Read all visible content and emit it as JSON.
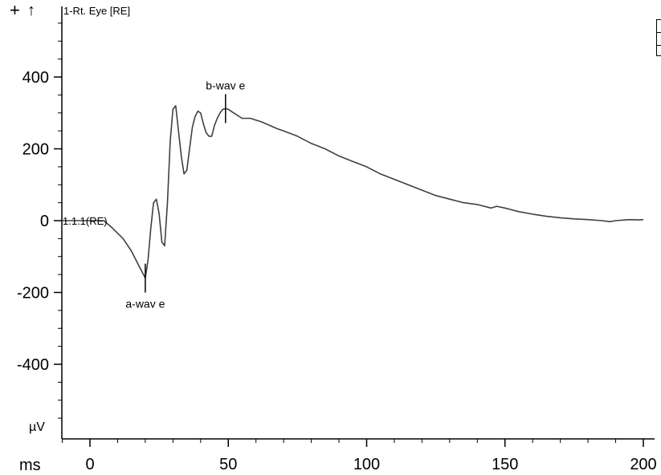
{
  "toolbar": {
    "zoom_in_icon": "plus-icon",
    "zoom_in_glyph": "+",
    "scroll_up_icon": "up-arrow-icon",
    "scroll_up_glyph": "↑"
  },
  "chart_data": {
    "type": "line",
    "title": "",
    "channel_label": "1-Rt. Eye [RE]",
    "trace_label": "1.1.1(RE)",
    "xlabel": "ms",
    "ylabel": "µV",
    "xlim": [
      -10,
      200
    ],
    "ylim": [
      -600,
      600
    ],
    "x_ticks": [
      0,
      50,
      100,
      150,
      200
    ],
    "y_ticks": [
      -400,
      -200,
      0,
      200,
      400
    ],
    "grid": false,
    "line_color": "#404040",
    "series": [
      {
        "x": [
          -10,
          5,
          8,
          12,
          15,
          18,
          20,
          21,
          22,
          23,
          24,
          25,
          26,
          27,
          28,
          29,
          30,
          31,
          32,
          33,
          34,
          35,
          36,
          37,
          38,
          39,
          40,
          41,
          42,
          43,
          44,
          45,
          46,
          47,
          48,
          49,
          50,
          52,
          55,
          58,
          62,
          65,
          68,
          70,
          75,
          80,
          85,
          90,
          95,
          100,
          105,
          110,
          115,
          120,
          125,
          130,
          135,
          140,
          145,
          147,
          150,
          155,
          160,
          165,
          170,
          175,
          180,
          185,
          188,
          190,
          195,
          198,
          200
        ],
        "y": [
          0,
          0,
          -20,
          -50,
          -85,
          -130,
          -160,
          -110,
          -20,
          50,
          60,
          20,
          -60,
          -70,
          50,
          220,
          310,
          320,
          250,
          180,
          130,
          140,
          200,
          260,
          290,
          305,
          300,
          270,
          245,
          235,
          235,
          265,
          285,
          300,
          310,
          312,
          310,
          300,
          285,
          285,
          275,
          265,
          255,
          250,
          235,
          215,
          200,
          180,
          165,
          150,
          130,
          115,
          100,
          85,
          70,
          60,
          50,
          45,
          35,
          40,
          35,
          25,
          18,
          12,
          8,
          5,
          3,
          0,
          -3,
          0,
          3,
          2,
          3
        ]
      }
    ],
    "annotations": [
      {
        "text": "a-wav e",
        "x": 20,
        "y": -160
      },
      {
        "text": "b-wav e",
        "x": 49,
        "y": 312
      }
    ]
  }
}
